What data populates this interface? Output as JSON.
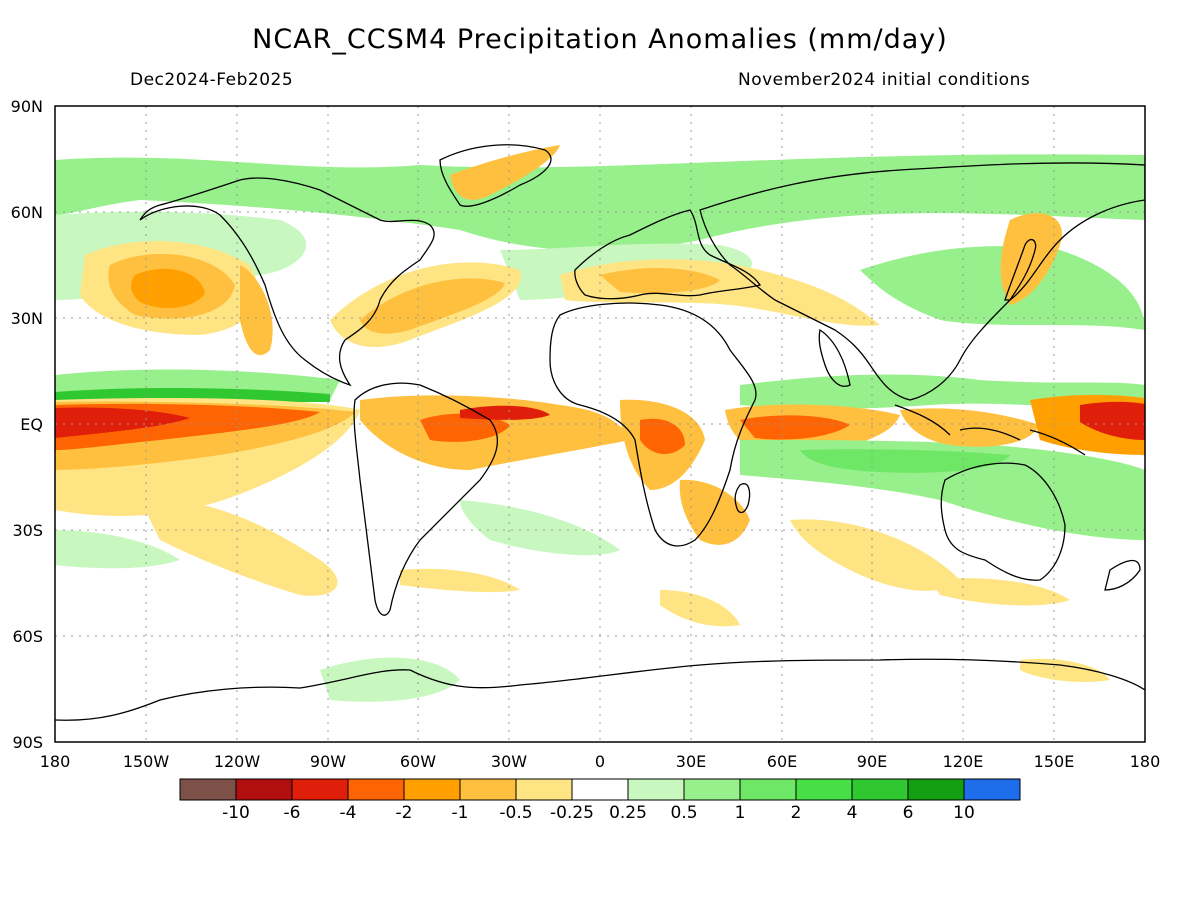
{
  "header": {
    "title": "NCAR_CCSM4 Precipitation Anomalies (mm/day)",
    "period": "Dec2024-Feb2025",
    "init": "November2024 initial conditions"
  },
  "map": {
    "lat_labels": [
      "90N",
      "60N",
      "30N",
      "EQ",
      "30S",
      "60S",
      "90S"
    ],
    "lon_labels": [
      "180",
      "150W",
      "120W",
      "90W",
      "60W",
      "30W",
      "0",
      "30E",
      "60E",
      "90E",
      "120E",
      "150E",
      "180"
    ]
  },
  "colorbar": {
    "labels": [
      "-10",
      "-6",
      "-4",
      "-2",
      "-1",
      "-0.5",
      "-0.25",
      "0.25",
      "0.5",
      "1",
      "2",
      "4",
      "6",
      "10"
    ],
    "colors": [
      "#7d5148",
      "#b10f0f",
      "#df1f0a",
      "#ff6404",
      "#ffa000",
      "#ffc040",
      "#ffe484",
      "#ffffff",
      "#c8f8c0",
      "#98f08c",
      "#6ee666",
      "#46e046",
      "#30c830",
      "#12a012",
      "#1e6eeb"
    ]
  }
}
